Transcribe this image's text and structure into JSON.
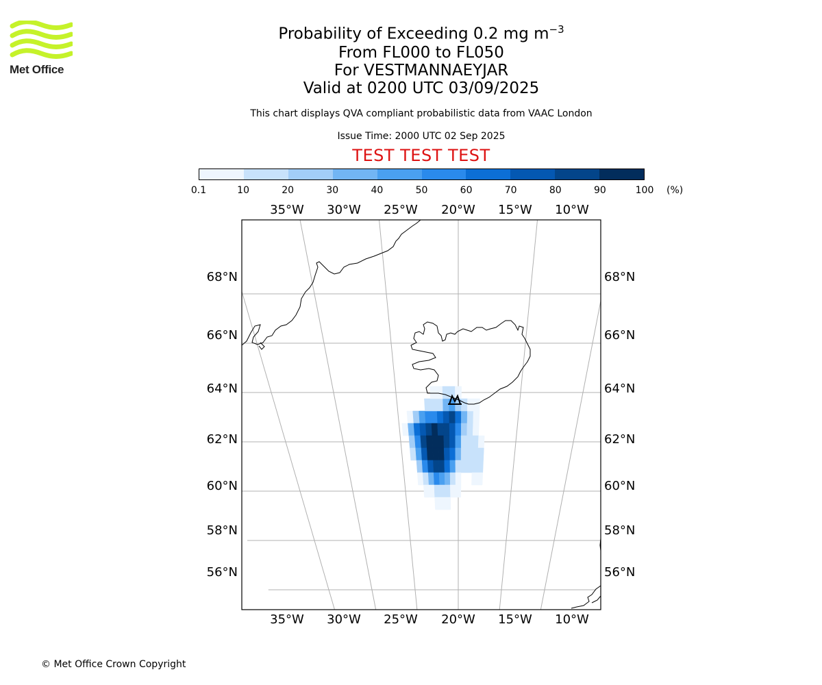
{
  "logo": {
    "name": "Met Office",
    "colors": {
      "waves": "#c5f22a",
      "text": "#222222"
    }
  },
  "title": {
    "line1_prefix": "Probability of Exceeding 0.2 mg m",
    "line1_sup": "−3",
    "line2": "From FL000 to FL050",
    "line3": "For VESTMANNAEYJAR",
    "line4": "Valid at 0200 UTC 03/09/2025"
  },
  "notes": {
    "description": "This chart displays QVA compliant probabilistic data from VAAC London",
    "issue_time": "Issue Time: 2000 UTC 02 Sep 2025"
  },
  "banner": "TEST TEST TEST",
  "colorbar": {
    "ticks": [
      "0.1",
      "10",
      "20",
      "30",
      "40",
      "50",
      "60",
      "70",
      "80",
      "90",
      "100"
    ],
    "unit": "(%)",
    "colors": [
      "#eef6fe",
      "#c8e2fb",
      "#a2cdf7",
      "#72b5f4",
      "#4aa0f0",
      "#2a8aec",
      "#0c6fd6",
      "#0458b2",
      "#03458a",
      "#022d5c"
    ]
  },
  "map": {
    "lon_labels": [
      "35°W",
      "30°W",
      "25°W",
      "20°W",
      "15°W",
      "10°W"
    ],
    "lat_labels": [
      "68°N",
      "66°N",
      "64°N",
      "62°N",
      "60°N",
      "58°N",
      "56°N"
    ],
    "grid": true,
    "projection": "polar stereographic",
    "extent": {
      "lon": [
        -39,
        -7.5
      ],
      "lat": [
        54.5,
        70
      ]
    }
  },
  "chart_data": {
    "type": "heatmap",
    "title": "Probability of Exceeding 0.2 mg m−3",
    "variable": "probability (%)",
    "source_location": "VESTMANNAEYJAR",
    "cells": [
      [
        -24.0,
        63.0,
        10
      ],
      [
        -23.5,
        63.0,
        30
      ],
      [
        -23.0,
        63.0,
        50
      ],
      [
        -22.5,
        63.0,
        60
      ],
      [
        -22.0,
        63.0,
        60
      ],
      [
        -21.5,
        63.0,
        70
      ],
      [
        -21.0,
        63.0,
        80
      ],
      [
        -20.5,
        63.0,
        90
      ],
      [
        -20.0,
        63.0,
        70
      ],
      [
        -19.5,
        63.0,
        40
      ],
      [
        -19.0,
        63.0,
        20
      ],
      [
        -18.5,
        63.0,
        10
      ],
      [
        -22.5,
        63.5,
        20
      ],
      [
        -22.0,
        63.5,
        20
      ],
      [
        -21.5,
        63.5,
        20
      ],
      [
        -21.0,
        63.5,
        40
      ],
      [
        -20.5,
        63.5,
        50
      ],
      [
        -20.0,
        63.5,
        30
      ],
      [
        -19.5,
        63.5,
        20
      ],
      [
        -19.0,
        63.5,
        10
      ],
      [
        -18.5,
        63.5,
        10
      ],
      [
        -22.0,
        64.0,
        10
      ],
      [
        -21.5,
        64.0,
        10
      ],
      [
        -21.0,
        64.0,
        20
      ],
      [
        -20.5,
        64.0,
        20
      ],
      [
        -20.0,
        64.0,
        10
      ],
      [
        -24.5,
        62.5,
        10
      ],
      [
        -24.0,
        62.5,
        40
      ],
      [
        -23.5,
        62.5,
        70
      ],
      [
        -23.0,
        62.5,
        80
      ],
      [
        -22.5,
        62.5,
        90
      ],
      [
        -22.0,
        62.5,
        100
      ],
      [
        -21.5,
        62.5,
        90
      ],
      [
        -21.0,
        62.5,
        90
      ],
      [
        -20.5,
        62.5,
        80
      ],
      [
        -20.0,
        62.5,
        60
      ],
      [
        -19.5,
        62.5,
        30
      ],
      [
        -19.0,
        62.5,
        20
      ],
      [
        -18.5,
        62.5,
        10
      ],
      [
        -24.0,
        62.0,
        30
      ],
      [
        -23.5,
        62.0,
        60
      ],
      [
        -23.0,
        62.0,
        90
      ],
      [
        -22.5,
        62.0,
        100
      ],
      [
        -22.0,
        62.0,
        100
      ],
      [
        -21.5,
        62.0,
        100
      ],
      [
        -21.0,
        62.0,
        90
      ],
      [
        -20.5,
        62.0,
        80
      ],
      [
        -20.0,
        62.0,
        50
      ],
      [
        -19.5,
        62.0,
        20
      ],
      [
        -19.0,
        62.0,
        20
      ],
      [
        -18.5,
        62.0,
        20
      ],
      [
        -18.0,
        62.0,
        10
      ],
      [
        -24.0,
        61.5,
        20
      ],
      [
        -23.5,
        61.5,
        50
      ],
      [
        -23.0,
        61.5,
        80
      ],
      [
        -22.5,
        61.5,
        100
      ],
      [
        -22.0,
        61.5,
        100
      ],
      [
        -21.5,
        61.5,
        100
      ],
      [
        -21.0,
        61.5,
        80
      ],
      [
        -20.5,
        61.5,
        70
      ],
      [
        -20.0,
        61.5,
        40
      ],
      [
        -19.5,
        61.5,
        20
      ],
      [
        -19.0,
        61.5,
        20
      ],
      [
        -18.5,
        61.5,
        20
      ],
      [
        -18.0,
        61.5,
        20
      ],
      [
        -23.5,
        61.0,
        30
      ],
      [
        -23.0,
        61.0,
        60
      ],
      [
        -22.5,
        61.0,
        80
      ],
      [
        -22.0,
        61.0,
        90
      ],
      [
        -21.5,
        61.0,
        90
      ],
      [
        -21.0,
        61.0,
        70
      ],
      [
        -20.5,
        61.0,
        50
      ],
      [
        -20.0,
        61.0,
        20
      ],
      [
        -19.5,
        61.0,
        20
      ],
      [
        -19.0,
        61.0,
        20
      ],
      [
        -18.5,
        61.0,
        20
      ],
      [
        -18.0,
        61.0,
        20
      ],
      [
        -23.5,
        60.5,
        10
      ],
      [
        -23.0,
        60.5,
        20
      ],
      [
        -22.5,
        60.5,
        40
      ],
      [
        -22.0,
        60.5,
        60
      ],
      [
        -21.5,
        60.5,
        50
      ],
      [
        -21.0,
        60.5,
        40
      ],
      [
        -20.5,
        60.5,
        20
      ],
      [
        -20.0,
        60.5,
        10
      ],
      [
        -18.5,
        60.5,
        10
      ],
      [
        -18.0,
        60.5,
        10
      ],
      [
        -23.0,
        60.0,
        10
      ],
      [
        -22.5,
        60.0,
        10
      ],
      [
        -22.0,
        60.0,
        20
      ],
      [
        -21.5,
        60.0,
        20
      ],
      [
        -21.0,
        60.0,
        20
      ],
      [
        -20.5,
        60.0,
        10
      ],
      [
        -20.0,
        60.0,
        10
      ],
      [
        -22.0,
        59.5,
        10
      ],
      [
        -21.5,
        59.5,
        10
      ],
      [
        -21.0,
        59.5,
        10
      ]
    ]
  },
  "copyright": "© Met Office Crown Copyright"
}
